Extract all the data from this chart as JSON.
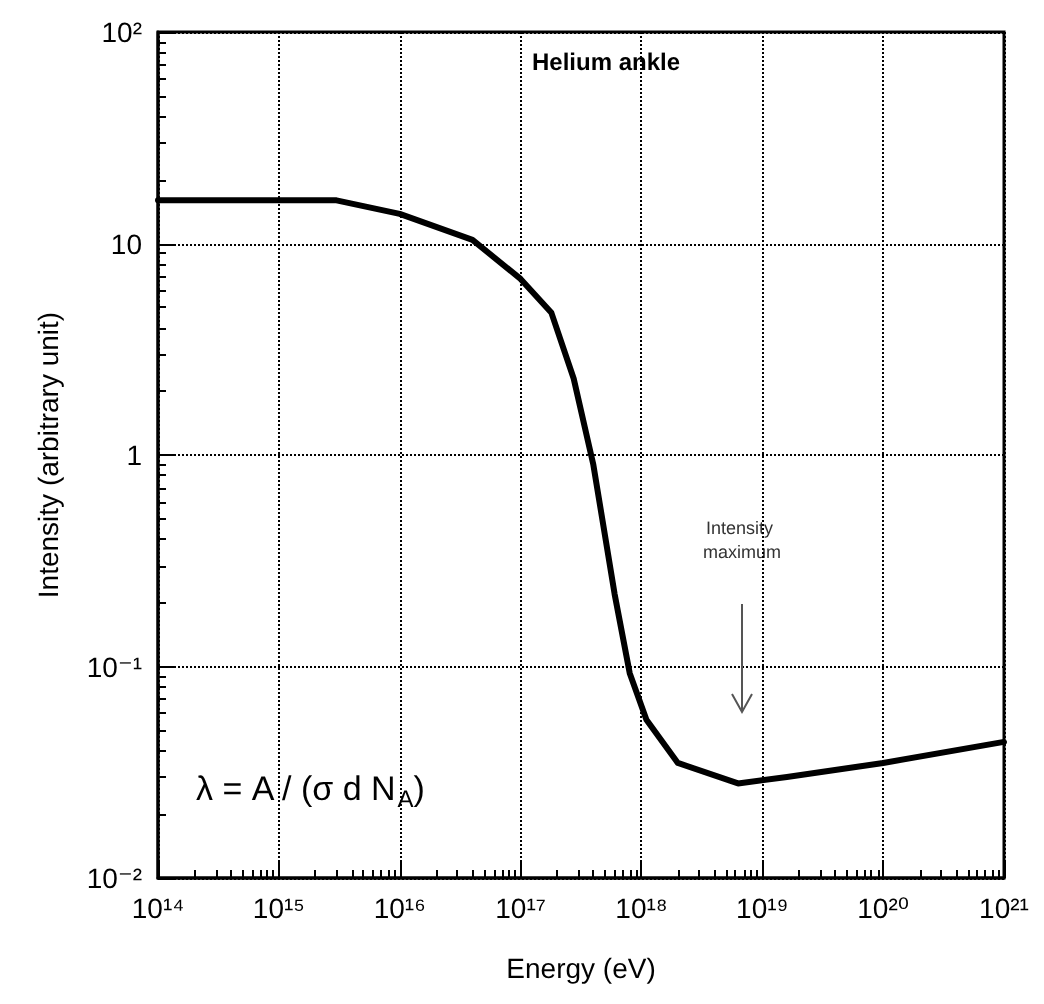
{
  "chart_data": {
    "type": "line",
    "title": "Helium ankle",
    "xlabel": "Energy (eV)",
    "ylabel": "Intensity (arbitrary unit)",
    "x": [
      100000000000000.0,
      3000000000000000.0,
      1e+16,
      4e+16,
      1e+17,
      1.8e+17,
      2.75e+17,
      4e+17,
      6e+17,
      8e+17,
      1.1e+18,
      2e+18,
      6.3e+18,
      1.6e+19,
      1e+20,
      1e+21
    ],
    "series": [
      {
        "color": "#000000",
        "values": [
          16,
          16,
          13.8,
          10.4,
          6.8,
          4.7,
          2.3,
          0.9,
          0.22,
          0.093,
          0.056,
          0.035,
          0.028,
          0.03,
          0.035,
          0.044
        ]
      }
    ],
    "log": "xy",
    "xlim": [
      100000000000000.0,
      1e+21
    ],
    "ylim": [
      0.01,
      100
    ],
    "xticks": [
      {
        "value": 100000000000000.0,
        "label": "10¹⁴"
      },
      {
        "value": 1000000000000000.0,
        "label": "10¹⁵"
      },
      {
        "value": 1e+16,
        "label": "10¹⁶"
      },
      {
        "value": 1e+17,
        "label": "10¹⁷"
      },
      {
        "value": 1e+18,
        "label": "10¹⁸"
      },
      {
        "value": 1e+19,
        "label": "10¹⁹"
      },
      {
        "value": 1e+20,
        "label": "10²⁰"
      },
      {
        "value": 1e+21,
        "label": "10²¹"
      }
    ],
    "yticks": [
      {
        "value": 0.01,
        "label": "10⁻²"
      },
      {
        "value": 0.1,
        "label": "10⁻¹"
      },
      1,
      10,
      {
        "value": 100,
        "label": "10²"
      }
    ],
    "grid": true,
    "marker": "none",
    "line_style": "solid",
    "annotations": [
      "Intensity maximum",
      "λ = A / (σ d N$_{A}$)"
    ]
  }
}
